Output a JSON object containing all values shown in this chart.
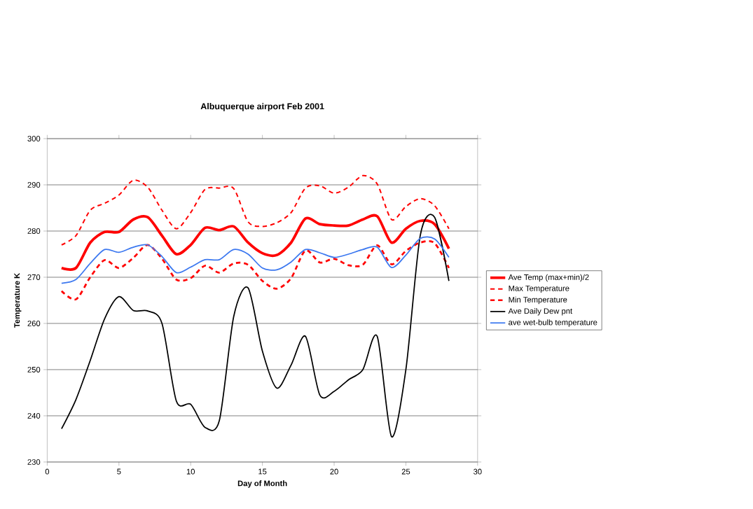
{
  "chart_data": {
    "type": "line",
    "title": "Albuquerque airport Feb 2001",
    "xlabel": "Day of Month",
    "ylabel": "Temperature K",
    "x": [
      1,
      2,
      3,
      4,
      5,
      6,
      7,
      8,
      9,
      10,
      11,
      12,
      13,
      14,
      15,
      16,
      17,
      18,
      19,
      20,
      21,
      22,
      23,
      24,
      25,
      26,
      27,
      28
    ],
    "series": [
      {
        "name": "Ave Temp (max+min)/2",
        "color": "#ff0000",
        "line_style": "solid",
        "values": [
          272,
          272,
          277.5,
          279.8,
          279.8,
          282.5,
          283,
          279,
          275,
          277,
          280.7,
          280.2,
          281,
          277.5,
          275.2,
          274.8,
          277.5,
          282.7,
          281.5,
          281.2,
          281.2,
          282.5,
          283.2,
          277.5,
          280.5,
          282.2,
          281.5,
          276.2
        ]
      },
      {
        "name": "Max Temperature",
        "color": "#ff0000",
        "line_style": "dashed",
        "values": [
          277,
          279,
          284.5,
          286,
          287.8,
          291,
          289.5,
          284.5,
          280.5,
          284,
          289,
          289.3,
          289.2,
          282,
          281,
          281.8,
          284,
          289.3,
          289.8,
          288.2,
          289.5,
          292,
          290.2,
          282.5,
          285.3,
          287,
          285.5,
          280.5
        ]
      },
      {
        "name": "Min Temperature",
        "color": "#ff0000",
        "line_style": "dashed",
        "values": [
          267,
          265.2,
          270,
          273.7,
          272,
          274.2,
          277,
          274,
          269.5,
          269.8,
          272.5,
          271,
          273,
          272.7,
          269.2,
          267.5,
          269.8,
          275.8,
          273.2,
          274,
          272.6,
          272.7,
          276.9,
          272.8,
          275.7,
          277.5,
          277.4,
          272
        ]
      },
      {
        "name": "Ave Daily Dew pnt",
        "color": "#000000",
        "line_style": "solid",
        "values": [
          237.2,
          243.5,
          252,
          261,
          265.8,
          262.8,
          262.7,
          260,
          243.2,
          242.5,
          237.5,
          239,
          261.5,
          267.7,
          254,
          246,
          251,
          257.2,
          244.5,
          245.3,
          247.8,
          250,
          257.2,
          235.5,
          250,
          279,
          283,
          269.2
        ]
      },
      {
        "name": "ave wet-bulb temperature",
        "color": "#3c78f0",
        "line_style": "solid",
        "values": [
          268.7,
          269.5,
          273,
          276,
          275.4,
          276.5,
          277,
          274.5,
          271,
          272.2,
          273.8,
          273.8,
          276,
          275,
          272,
          271.6,
          273.3,
          276,
          275.3,
          274.3,
          275,
          276,
          276.5,
          272.1,
          274.8,
          278.4,
          278.3,
          274.3
        ]
      }
    ],
    "xlim": [
      0,
      30
    ],
    "xticks": [
      0,
      5,
      10,
      15,
      20,
      25,
      30
    ],
    "ylim": [
      230,
      300
    ],
    "yticks": [
      230,
      240,
      250,
      260,
      270,
      280,
      290,
      300
    ],
    "grid": "y",
    "legend": "right",
    "marker": "none"
  }
}
